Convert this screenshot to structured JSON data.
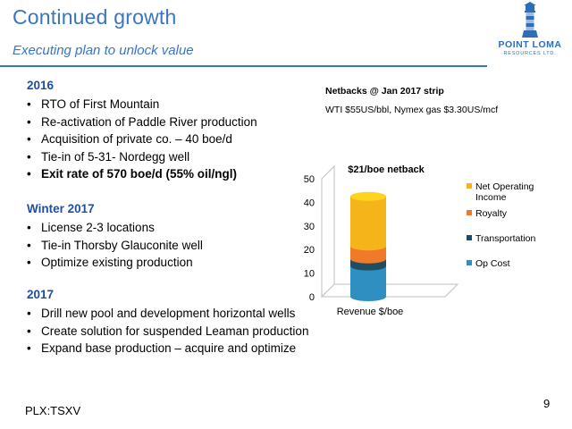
{
  "header": {
    "title": "Continued growth",
    "subtitle": "Executing plan to unlock value"
  },
  "logo": {
    "name": "POINT LOMA",
    "tagline": "RESOURCES LTD."
  },
  "sections": [
    {
      "heading": "2016",
      "items": [
        "RTO of First Mountain",
        "Re-activation of Paddle River production",
        "Acquisition of private co. – 40 boe/d",
        "Tie-in of 5-31- Nordegg well",
        "Exit rate of 570 boe/d (55% oil/ngl)"
      ]
    },
    {
      "heading": "Winter 2017",
      "items": [
        "License 2-3 locations",
        "Tie-in Thorsby Glauconite well",
        "Optimize existing production"
      ]
    },
    {
      "heading": "2017",
      "items": [
        "Drill new pool and development horizontal wells",
        "Create solution for suspended Leaman production",
        "Expand base production – acquire and optimize"
      ]
    }
  ],
  "chart_header": {
    "title": "Netbacks @ Jan 2017 strip",
    "subtitle": "WTI $55US/bbl, Nymex gas $3.30US/mcf"
  },
  "chart_data": {
    "type": "bar",
    "stacked": true,
    "categories": [
      "Revenue $/boe"
    ],
    "series": [
      {
        "name": "Op Cost",
        "values": [
          13
        ],
        "color": "#2e8fc0"
      },
      {
        "name": "Transportation",
        "values": [
          3
        ],
        "color": "#1f4e63"
      },
      {
        "name": "Royalty",
        "values": [
          5.5
        ],
        "color": "#ee7a2a"
      },
      {
        "name": "Net Operating Income",
        "values": [
          21
        ],
        "color": "#f4b41a"
      }
    ],
    "annotation": "$21/boe netback",
    "yticks": [
      "0",
      "10",
      "20",
      "30",
      "40",
      "50"
    ],
    "ylim": [
      0,
      50
    ],
    "legend": "right",
    "grid": false
  },
  "footer": {
    "ticker": "PLX:TSXV",
    "page": "9"
  }
}
